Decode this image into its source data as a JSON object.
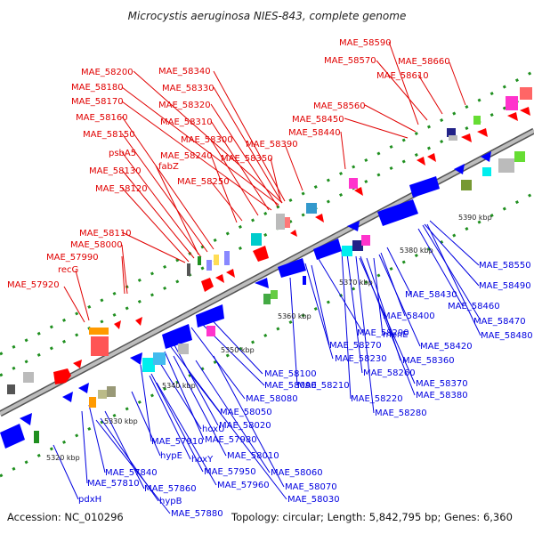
{
  "title": "Microcystis aeruginosa NIES-843, complete genome",
  "footer": {
    "accession": "Accession: NC_010296",
    "summary": "Topology: circular; Length: 5,842,795 bp; Genes: 6,360"
  },
  "colors": {
    "top_label": "#e00000",
    "bottom_label": "#0000e0",
    "backbone": "#9a9a9a",
    "forward_arrow": "#ff0000",
    "reverse_arrow": "#0000ff",
    "grid_dot": "#1f8f1f"
  },
  "ticks": [
    "5320 kbp",
    "5330 kbp",
    "5340 kbp",
    "5350 kbp",
    "5360 kbp",
    "5370 kbp",
    "5380 kbp",
    "5390 kbp"
  ],
  "top_labels": [
    {
      "text": "MAE_58590"
    },
    {
      "text": "MAE_58570"
    },
    {
      "text": "MAE_58660"
    },
    {
      "text": "MAE_58610"
    },
    {
      "text": "MAE_58200"
    },
    {
      "text": "MAE_58340"
    },
    {
      "text": "MAE_58180"
    },
    {
      "text": "MAE_58330"
    },
    {
      "text": "MAE_58170"
    },
    {
      "text": "MAE_58320"
    },
    {
      "text": "MAE_58560"
    },
    {
      "text": "MAE_58160"
    },
    {
      "text": "MAE_58310"
    },
    {
      "text": "MAE_58450"
    },
    {
      "text": "MAE_58150"
    },
    {
      "text": "MAE_58440"
    },
    {
      "text": "MAE_58300"
    },
    {
      "text": "MAE_58390"
    },
    {
      "text": "psbA5"
    },
    {
      "text": "MAE_58240"
    },
    {
      "text": "MAE_58350"
    },
    {
      "text": "fabZ"
    },
    {
      "text": "MAE_58130"
    },
    {
      "text": "MAE_58250"
    },
    {
      "text": "MAE_58120"
    },
    {
      "text": "MAE_58110"
    },
    {
      "text": "MAE_58000"
    },
    {
      "text": "MAE_57990"
    },
    {
      "text": "recG"
    },
    {
      "text": "MAE_57920"
    }
  ],
  "bottom_labels": [
    {
      "text": "MAE_58550"
    },
    {
      "text": "MAE_58490"
    },
    {
      "text": "MAE_58430"
    },
    {
      "text": "MAE_58460"
    },
    {
      "text": "MAE_58470"
    },
    {
      "text": "MAE_58400"
    },
    {
      "text": "MAE_58480"
    },
    {
      "text": "menE"
    },
    {
      "text": "MAE_58290"
    },
    {
      "text": "MAE_58420"
    },
    {
      "text": "MAE_58270"
    },
    {
      "text": "MAE_58360"
    },
    {
      "text": "MAE_58230"
    },
    {
      "text": "MAE_58260"
    },
    {
      "text": "MAE_58370"
    },
    {
      "text": "MAE_58100"
    },
    {
      "text": "MAE_58210"
    },
    {
      "text": "MAE_58380"
    },
    {
      "text": "MAE_58090"
    },
    {
      "text": "MAE_58220"
    },
    {
      "text": "MAE_58080"
    },
    {
      "text": "MAE_58280"
    },
    {
      "text": "MAE_58050"
    },
    {
      "text": "hoxU"
    },
    {
      "text": "MAE_58020"
    },
    {
      "text": "MAE_57910"
    },
    {
      "text": "MAE_57980"
    },
    {
      "text": "hypE"
    },
    {
      "text": "MAE_58010"
    },
    {
      "text": "hoxY"
    },
    {
      "text": "MAE_57840"
    },
    {
      "text": "MAE_57950"
    },
    {
      "text": "MAE_58060"
    },
    {
      "text": "MAE_57810"
    },
    {
      "text": "MAE_57960"
    },
    {
      "text": "MAE_58070"
    },
    {
      "text": "MAE_57860"
    },
    {
      "text": "MAE_58030"
    },
    {
      "text": "pdxH"
    },
    {
      "text": "hypB"
    },
    {
      "text": "MAE_57880"
    }
  ]
}
